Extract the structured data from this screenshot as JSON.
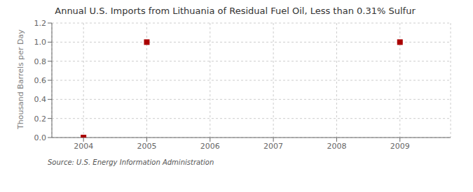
{
  "chart_data": {
    "type": "scatter",
    "title": "Annual U.S. Imports from Lithuania of Residual Fuel Oil, Less than 0.31% Sulfur",
    "ylabel": "Thousand Barrels per Day",
    "annotations": [
      "Source: U.S. Energy Information Administration"
    ],
    "x": [
      2004,
      2005,
      2009
    ],
    "values": [
      0.0,
      1.0,
      1.0
    ],
    "color": "#aa0000",
    "marker": "square",
    "xlim": [
      2003.5,
      2009.8
    ],
    "xticks": [
      2004,
      2005,
      2006,
      2007,
      2008,
      2009
    ],
    "ylim": [
      0.0,
      1.2
    ],
    "yticks": [
      {
        "value": 0.0,
        "label": "0.0"
      },
      0.2,
      0.4,
      0.6,
      0.8,
      {
        "value": 1.0,
        "label": "1.0"
      },
      1.2
    ],
    "grid": true
  }
}
